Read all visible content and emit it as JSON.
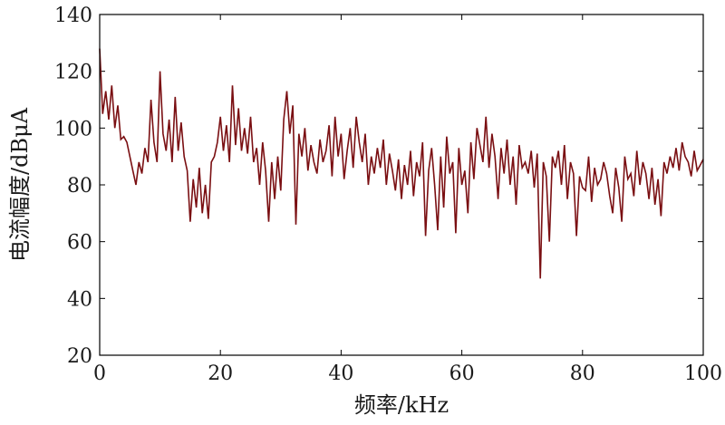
{
  "chart_data": {
    "type": "line",
    "xlabel": "频率/kHz",
    "ylabel": "电流幅度/dBμA",
    "xlim": [
      0,
      100
    ],
    "ylim": [
      20,
      140
    ],
    "x_ticks": [
      0,
      20,
      40,
      60,
      80,
      100
    ],
    "y_ticks": [
      20,
      40,
      60,
      80,
      100,
      120,
      140
    ],
    "grid": false,
    "line_color": "#7a0f12",
    "series": [
      {
        "x": [
          0,
          0.5,
          1,
          1.5,
          2,
          2.5,
          3,
          3.5,
          4,
          4.5,
          5,
          5.5,
          6,
          6.5,
          7,
          7.5,
          8,
          8.5,
          9,
          9.5,
          10,
          10.5,
          11,
          11.5,
          12,
          12.5,
          13,
          13.5,
          14,
          14.5,
          15,
          15.5,
          16,
          16.5,
          17,
          17.5,
          18,
          18.5,
          19,
          19.5,
          20,
          20.5,
          21,
          21.5,
          22,
          22.5,
          23,
          23.5,
          24,
          24.5,
          25,
          25.5,
          26,
          26.5,
          27,
          27.5,
          28,
          28.5,
          29,
          29.5,
          30,
          30.5,
          31,
          31.5,
          32,
          32.5,
          33,
          33.5,
          34,
          34.5,
          35,
          35.5,
          36,
          36.5,
          37,
          37.5,
          38,
          38.5,
          39,
          39.5,
          40,
          40.5,
          41,
          41.5,
          42,
          42.5,
          43,
          43.5,
          44,
          44.5,
          45,
          45.5,
          46,
          46.5,
          47,
          47.5,
          48,
          48.5,
          49,
          49.5,
          50,
          50.5,
          51,
          51.5,
          52,
          52.5,
          53,
          53.5,
          54,
          54.5,
          55,
          55.5,
          56,
          56.5,
          57,
          57.5,
          58,
          58.5,
          59,
          59.5,
          60,
          60.5,
          61,
          61.5,
          62,
          62.5,
          63,
          63.5,
          64,
          64.5,
          65,
          65.5,
          66,
          66.5,
          67,
          67.5,
          68,
          68.5,
          69,
          69.5,
          70,
          70.5,
          71,
          71.5,
          72,
          72.5,
          73,
          73.5,
          74,
          74.5,
          75,
          75.5,
          76,
          76.5,
          77,
          77.5,
          78,
          78.5,
          79,
          79.5,
          80,
          80.5,
          81,
          81.5,
          82,
          82.5,
          83,
          83.5,
          84,
          84.5,
          85,
          85.5,
          86,
          86.5,
          87,
          87.5,
          88,
          88.5,
          89,
          89.5,
          90,
          90.5,
          91,
          91.5,
          92,
          92.5,
          93,
          93.5,
          94,
          94.5,
          95,
          95.5,
          96,
          96.5,
          97,
          97.5,
          98,
          98.5,
          99,
          99.5,
          100
        ],
        "y": [
          128,
          105,
          113,
          103,
          115,
          100,
          108,
          96,
          97,
          95,
          90,
          85,
          80,
          88,
          84,
          93,
          88,
          110,
          95,
          88,
          120,
          98,
          92,
          103,
          88,
          111,
          92,
          102,
          90,
          85,
          67,
          82,
          72,
          86,
          70,
          80,
          68,
          88,
          90,
          95,
          104,
          92,
          101,
          88,
          115,
          94,
          107,
          92,
          100,
          91,
          104,
          88,
          93,
          80,
          95,
          85,
          67,
          88,
          75,
          90,
          78,
          103,
          113,
          98,
          108,
          66,
          98,
          90,
          100,
          85,
          94,
          88,
          84,
          96,
          88,
          92,
          101,
          83,
          104,
          90,
          98,
          82,
          92,
          100,
          86,
          104,
          95,
          88,
          98,
          80,
          90,
          84,
          93,
          86,
          96,
          80,
          91,
          85,
          78,
          89,
          75,
          87,
          80,
          92,
          76,
          88,
          83,
          95,
          62,
          85,
          93,
          80,
          64,
          90,
          72,
          97,
          84,
          88,
          63,
          93,
          80,
          85,
          70,
          95,
          82,
          100,
          94,
          88,
          104,
          86,
          98,
          90,
          75,
          93,
          84,
          96,
          80,
          90,
          73,
          94,
          86,
          88,
          84,
          92,
          79,
          91,
          47,
          88,
          83,
          60,
          90,
          86,
          92,
          80,
          94,
          75,
          88,
          84,
          62,
          83,
          79,
          78,
          90,
          74,
          86,
          80,
          82,
          88,
          84,
          76,
          70,
          86,
          79,
          67,
          90,
          82,
          84,
          76,
          92,
          80,
          88,
          84,
          75,
          86,
          73,
          82,
          69,
          88,
          84,
          90,
          86,
          93,
          85,
          95,
          90,
          88,
          83,
          92,
          85,
          87,
          89
        ]
      }
    ]
  }
}
